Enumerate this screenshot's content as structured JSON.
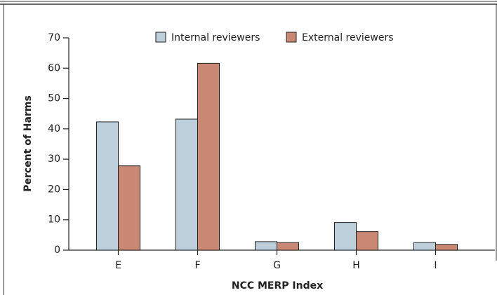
{
  "chart_data": {
    "type": "bar",
    "x_label": "NCC MERP Index",
    "y_label": "Percent of Harms",
    "categories": [
      "E",
      "F",
      "G",
      "H",
      "I"
    ],
    "series": [
      {
        "name": "Internal reviewers",
        "color": "#bccfdb",
        "values": [
          42.3,
          43.2,
          2.8,
          9.1,
          2.5
        ]
      },
      {
        "name": "External reviewers",
        "color": "#c98873",
        "values": [
          27.8,
          61.6,
          2.5,
          6.1,
          1.9
        ]
      }
    ],
    "ylim": [
      0,
      70
    ],
    "yticks": [
      0,
      10,
      20,
      30,
      40,
      50,
      60,
      70
    ],
    "legend": "top"
  }
}
